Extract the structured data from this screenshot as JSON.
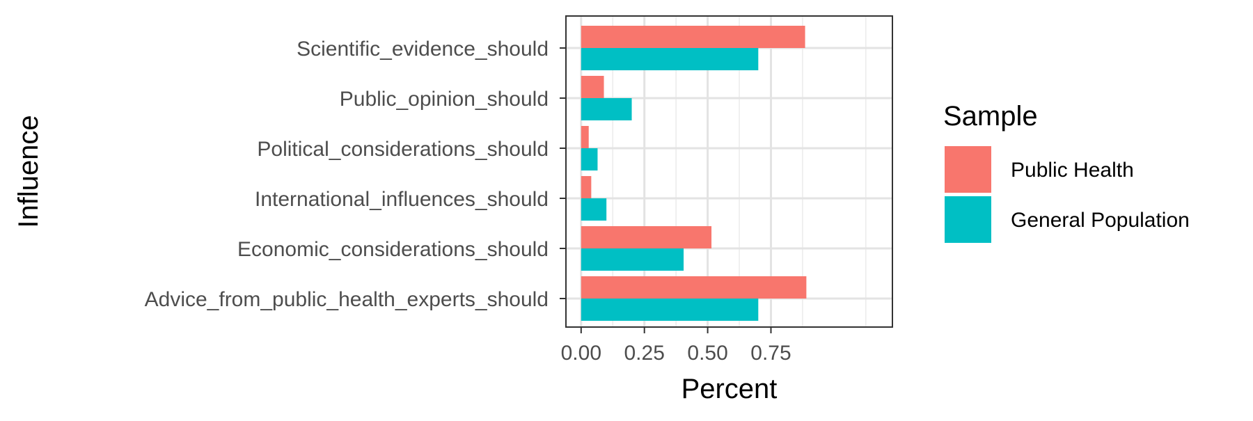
{
  "chart_data": {
    "type": "bar",
    "orientation": "horizontal",
    "title": "",
    "xlabel": "Percent",
    "ylabel": "Influence",
    "xlim": [
      -0.06,
      1.23
    ],
    "xticks": [
      0.0,
      0.25,
      0.5,
      0.75
    ],
    "xtick_labels": [
      "0.00",
      "0.25",
      "0.50",
      "0.75"
    ],
    "grid": true,
    "legend": {
      "title": "Sample",
      "position": "right"
    },
    "categories": [
      "Scientific_evidence_should",
      "Public_opinion_should",
      "Political_considerations_should",
      "International_influences_should",
      "Economic_considerations_should",
      "Advice_from_public_health_experts_should"
    ],
    "series": [
      {
        "name": "Public Health",
        "color": "#F8766D",
        "values": [
          0.885,
          0.09,
          0.03,
          0.04,
          0.515,
          0.89
        ]
      },
      {
        "name": "General Population",
        "color": "#00BFC4",
        "values": [
          0.7,
          0.2,
          0.065,
          0.1,
          0.405,
          0.7
        ]
      }
    ]
  }
}
